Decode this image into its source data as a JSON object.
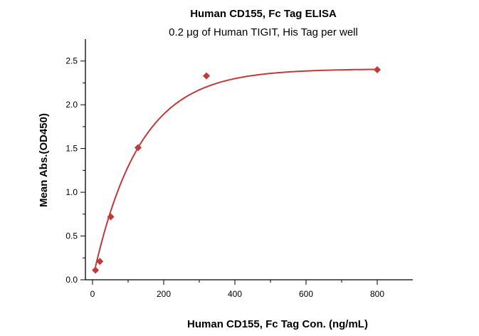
{
  "chart_data": {
    "type": "scatter",
    "title": "Human CD155, Fc Tag ELISA",
    "subtitle": "0.2 μg of Human TIGIT, His Tag per well",
    "xlabel": "Human CD155, Fc Tag Con. (ng/mL)",
    "ylabel": "Mean Abs.(OD450)",
    "xlim": [
      -20,
      900
    ],
    "ylim": [
      0,
      2.75
    ],
    "xticks": [
      0,
      200,
      400,
      600,
      800
    ],
    "yticks": [
      0.0,
      0.5,
      1.0,
      1.5,
      2.0,
      2.5
    ],
    "ytick_labels": [
      "0.0",
      "0.5",
      "1.0",
      "1.5",
      "2.0",
      "2.5"
    ],
    "grid": false,
    "series": [
      {
        "name": "Human CD155, Fc Tag",
        "x": [
          8.2,
          20.5,
          51.2,
          128,
          320,
          800
        ],
        "y": [
          0.11,
          0.21,
          0.72,
          1.51,
          2.33,
          2.4
        ],
        "fit": {
          "model": "saturation",
          "max": 2.41,
          "k": 130
        }
      }
    ],
    "colors": {
      "series": "#c0393b",
      "axis": "#000000"
    }
  }
}
